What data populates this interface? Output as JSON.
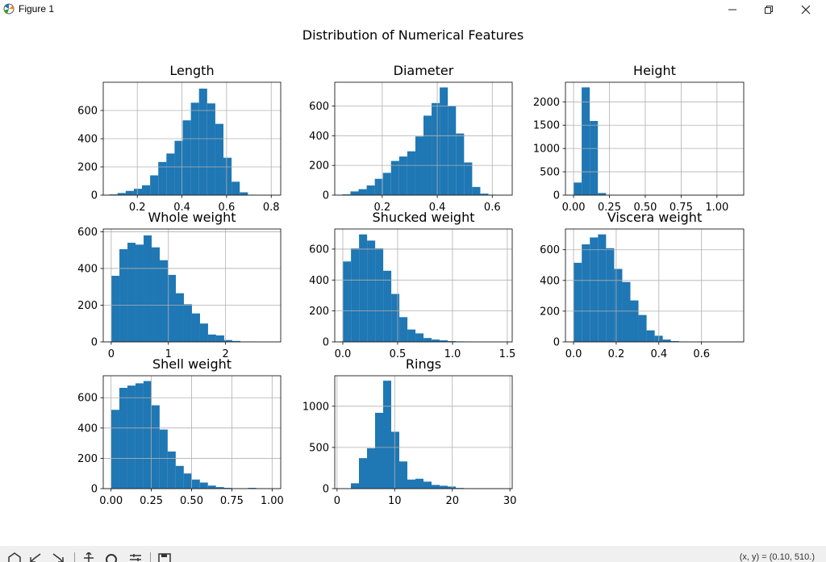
{
  "window": {
    "title": "Figure 1",
    "buttons": [
      "minimize",
      "maximize",
      "close"
    ]
  },
  "figure": {
    "suptitle": "Distribution of Numerical Features"
  },
  "toolbar": {
    "tools": [
      "home-icon",
      "back-icon",
      "forward-icon",
      "pan-icon",
      "zoom-icon",
      "subplots-icon",
      "save-icon"
    ],
    "coords_text": "(x, y) = (0.10, 510.)"
  },
  "colors": {
    "bar": "#1f77b4",
    "grid": "#b0b0b0",
    "axis": "#000000"
  },
  "chart_data": [
    {
      "type": "bar",
      "title": "Length",
      "xlabel": "",
      "ylabel": "",
      "xlim": [
        0.0475,
        0.8425
      ],
      "ylim": [
        0,
        800
      ],
      "xticks": [
        0.2,
        0.4,
        0.6,
        0.8
      ],
      "xticklabels": [
        "0.2",
        "0.4",
        "0.6",
        "0.8"
      ],
      "yticks": [
        0,
        200,
        400,
        600
      ],
      "yticklabels": [
        "0",
        "200",
        "400",
        "600"
      ],
      "bins": [
        0.075,
        0.1115,
        0.148,
        0.1845,
        0.221,
        0.2575,
        0.294,
        0.3305,
        0.367,
        0.4035,
        0.44,
        0.4765,
        0.513,
        0.5495,
        0.586,
        0.6225,
        0.659,
        0.6955,
        0.732,
        0.7685,
        0.815
      ],
      "counts": [
        5,
        15,
        30,
        45,
        70,
        140,
        235,
        295,
        385,
        530,
        655,
        755,
        650,
        505,
        265,
        95,
        20,
        3,
        1,
        0
      ],
      "grid": true
    },
    {
      "type": "bar",
      "title": "Diameter",
      "xlabel": "",
      "ylabel": "",
      "xlim": [
        0.0275,
        0.6725
      ],
      "ylim": [
        0,
        760
      ],
      "xticks": [
        0.2,
        0.4,
        0.6
      ],
      "xticklabels": [
        "0.2",
        "0.4",
        "0.6"
      ],
      "yticks": [
        0,
        200,
        400,
        600
      ],
      "yticklabels": [
        "0",
        "200",
        "400",
        "600"
      ],
      "bins": [
        0.055,
        0.0845,
        0.114,
        0.1435,
        0.173,
        0.2025,
        0.232,
        0.2615,
        0.291,
        0.3205,
        0.35,
        0.3795,
        0.409,
        0.4385,
        0.468,
        0.4975,
        0.527,
        0.5565,
        0.586,
        0.6155,
        0.65
      ],
      "counts": [
        5,
        25,
        40,
        65,
        110,
        150,
        230,
        260,
        295,
        395,
        535,
        620,
        725,
        600,
        415,
        220,
        55,
        10,
        3,
        0
      ],
      "grid": true
    },
    {
      "type": "bar",
      "title": "Height",
      "xlabel": "",
      "ylabel": "",
      "xlim": [
        -0.0565,
        1.1865
      ],
      "ylim": [
        0,
        2420
      ],
      "xticks": [
        0.0,
        0.25,
        0.5,
        0.75,
        1.0
      ],
      "xticklabels": [
        "0.00",
        "0.25",
        "0.50",
        "0.75",
        "1.00"
      ],
      "yticks": [
        0,
        500,
        1000,
        1500,
        2000
      ],
      "yticklabels": [
        "0",
        "500",
        "1000",
        "1500",
        "2000"
      ],
      "bins": [
        0.0,
        0.0565,
        0.113,
        0.1695,
        0.226,
        0.2825,
        0.339,
        0.3955,
        0.452,
        0.5085,
        0.565,
        0.6215,
        0.678,
        0.7345,
        0.791,
        0.8475,
        0.904,
        0.9605,
        1.017,
        1.0735,
        1.13
      ],
      "counts": [
        270,
        2310,
        1590,
        45,
        2,
        0,
        0,
        0,
        0,
        1,
        0,
        0,
        0,
        0,
        0,
        0,
        0,
        0,
        0,
        1
      ],
      "grid": true
    },
    {
      "type": "bar",
      "title": "Whole weight",
      "xlabel": "",
      "ylabel": "",
      "xlim": [
        -0.14,
        2.965
      ],
      "ylim": [
        0,
        615
      ],
      "xticks": [
        0,
        1,
        2
      ],
      "xticklabels": [
        "0",
        "1",
        "2"
      ],
      "yticks": [
        0,
        200,
        400,
        600
      ],
      "yticklabels": [
        "0",
        "200",
        "400",
        "600"
      ],
      "bins": [
        0.002,
        0.143,
        0.284,
        0.425,
        0.566,
        0.707,
        0.848,
        0.989,
        1.13,
        1.271,
        1.412,
        1.553,
        1.694,
        1.835,
        1.976,
        2.117,
        2.258,
        2.399,
        2.54,
        2.681,
        2.826
      ],
      "counts": [
        360,
        505,
        540,
        530,
        580,
        515,
        445,
        365,
        265,
        205,
        155,
        100,
        40,
        35,
        10,
        5,
        2,
        1,
        0,
        0
      ],
      "grid": true
    },
    {
      "type": "bar",
      "title": "Shucked weight",
      "xlabel": "",
      "ylabel": "",
      "xlim": [
        -0.0735,
        1.5445
      ],
      "ylim": [
        0,
        730
      ],
      "xticks": [
        0.0,
        0.5,
        1.0,
        1.5
      ],
      "xticklabels": [
        "0.0",
        "0.5",
        "1.0",
        "1.5"
      ],
      "yticks": [
        0,
        200,
        400,
        600
      ],
      "yticklabels": [
        "0",
        "200",
        "400",
        "600"
      ],
      "bins": [
        0.001,
        0.0745,
        0.148,
        0.2215,
        0.295,
        0.3685,
        0.442,
        0.5155,
        0.589,
        0.6625,
        0.736,
        0.8095,
        0.883,
        0.9565,
        1.03,
        1.1035,
        1.177,
        1.2505,
        1.324,
        1.3975,
        1.488
      ],
      "counts": [
        520,
        605,
        695,
        655,
        605,
        460,
        310,
        160,
        80,
        55,
        25,
        15,
        10,
        5,
        3,
        2,
        1,
        1,
        0,
        0
      ],
      "grid": true
    },
    {
      "type": "bar",
      "title": "Viscera weight",
      "xlabel": "",
      "ylabel": "",
      "xlim": [
        -0.038,
        0.798
      ],
      "ylim": [
        0,
        735
      ],
      "xticks": [
        0.0,
        0.2,
        0.4,
        0.6
      ],
      "xticklabels": [
        "0.0",
        "0.2",
        "0.4",
        "0.6"
      ],
      "yticks": [
        0,
        200,
        400,
        600
      ],
      "yticklabels": [
        "0",
        "200",
        "400",
        "600"
      ],
      "bins": [
        0.0005,
        0.0385,
        0.0765,
        0.1145,
        0.1525,
        0.1905,
        0.2285,
        0.2665,
        0.3045,
        0.3425,
        0.3805,
        0.4185,
        0.4565,
        0.4945,
        0.5325,
        0.5705,
        0.6085,
        0.6465,
        0.6845,
        0.7225,
        0.76
      ],
      "counts": [
        515,
        635,
        680,
        700,
        610,
        475,
        390,
        270,
        175,
        75,
        40,
        15,
        5,
        2,
        1,
        0,
        0,
        0,
        0,
        0
      ],
      "grid": true
    },
    {
      "type": "bar",
      "title": "Shell weight",
      "xlabel": "",
      "ylabel": "",
      "xlim": [
        -0.0485,
        1.0535
      ],
      "ylim": [
        0,
        745
      ],
      "xticks": [
        0.0,
        0.25,
        0.5,
        0.75,
        1.0
      ],
      "xticklabels": [
        "0.00",
        "0.25",
        "0.50",
        "0.75",
        "1.00"
      ],
      "yticks": [
        0,
        200,
        400,
        600
      ],
      "yticklabels": [
        "0",
        "200",
        "400",
        "600"
      ],
      "bins": [
        0.0015,
        0.0515,
        0.1015,
        0.1515,
        0.2015,
        0.2515,
        0.3015,
        0.3515,
        0.4015,
        0.4515,
        0.5015,
        0.5515,
        0.6015,
        0.6515,
        0.7015,
        0.7515,
        0.8015,
        0.8515,
        0.9015,
        0.9515,
        1.005
      ],
      "counts": [
        520,
        665,
        680,
        695,
        710,
        550,
        390,
        245,
        150,
        100,
        60,
        40,
        20,
        10,
        5,
        2,
        1,
        5,
        2,
        0
      ],
      "grid": true
    },
    {
      "type": "bar",
      "title": "Rings",
      "xlabel": "",
      "ylabel": "",
      "xlim": [
        -0.4,
        30.4
      ],
      "ylim": [
        0,
        1370
      ],
      "xticks": [
        0,
        10,
        20,
        30
      ],
      "xticklabels": [
        "0",
        "10",
        "20",
        "30"
      ],
      "yticks": [
        0,
        500,
        1000
      ],
      "yticklabels": [
        "0",
        "500",
        "1000"
      ],
      "bins": [
        1,
        2.4,
        3.8,
        5.2,
        6.6,
        8.0,
        9.4,
        10.8,
        12.2,
        13.6,
        15.0,
        16.4,
        17.8,
        19.2,
        20.6,
        22.0,
        23.4,
        24.8,
        26.2,
        27.6,
        29
      ],
      "counts": [
        3,
        65,
        370,
        490,
        920,
        1310,
        690,
        330,
        110,
        120,
        85,
        45,
        35,
        25,
        8,
        4,
        2,
        1,
        1,
        1
      ],
      "grid": true
    }
  ]
}
